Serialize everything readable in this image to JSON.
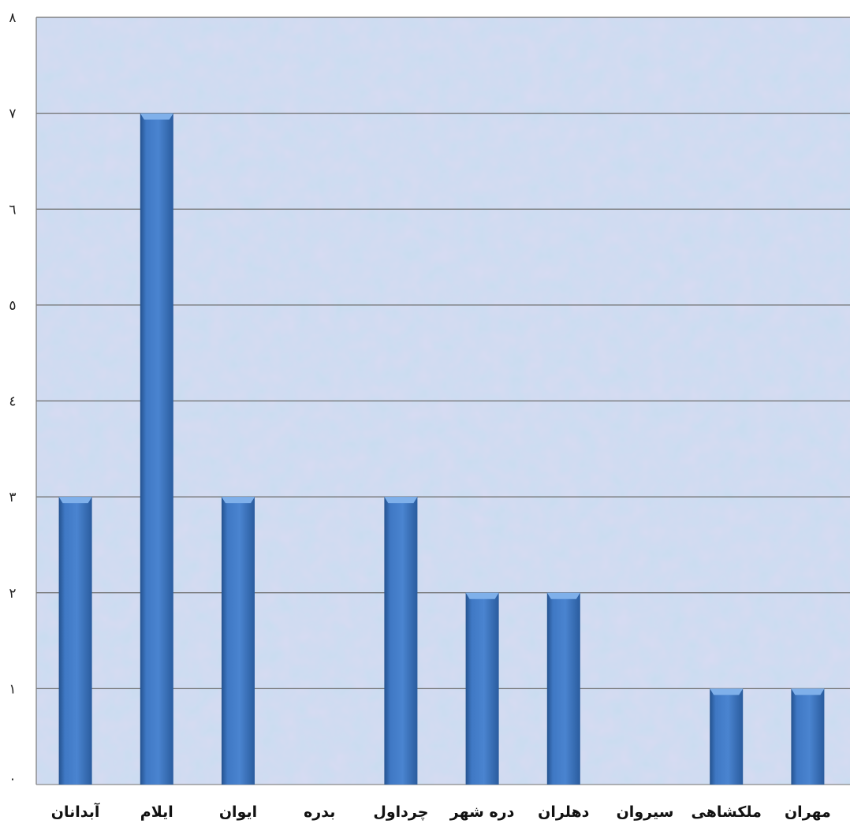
{
  "chart_data": {
    "type": "bar",
    "categories": [
      "آبدانان",
      "ایلام",
      "ایوان",
      "بدره",
      "چرداول",
      "دره شهر",
      "دهلران",
      "سیروان",
      "ملکشاهی",
      "مهران"
    ],
    "values": [
      3,
      7,
      3,
      0,
      3,
      2,
      2,
      0,
      1,
      1
    ],
    "yticks": [
      "۰",
      "۱",
      "۲",
      "۳",
      "٤",
      "٥",
      "٦",
      "۷",
      "۸"
    ],
    "ylim": [
      0,
      8
    ],
    "grid": true,
    "title": "",
    "xlabel": "",
    "ylabel": "",
    "colors": {
      "bar": "#3f78c4",
      "bar_dark": "#24528f",
      "bar_light": "#7fb0ea",
      "plot_bg": "#c8dcf0",
      "gridline": "#6e6e6e"
    }
  }
}
